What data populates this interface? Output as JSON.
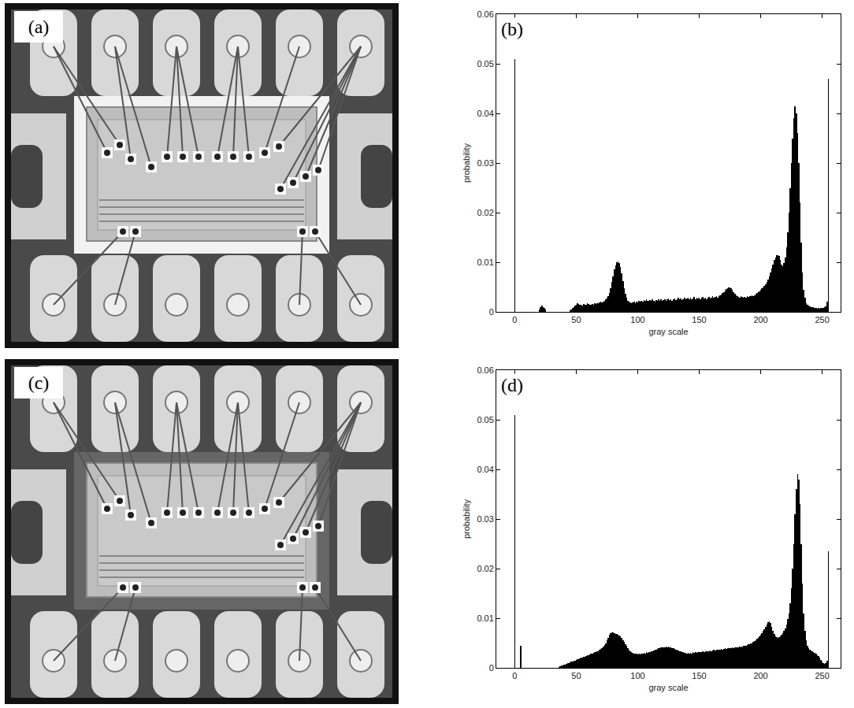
{
  "images": [
    {
      "label": "(a)"
    },
    {
      "label": "(c)"
    }
  ],
  "chart_data": [
    {
      "type": "bar",
      "label": "(b)",
      "x_label": "gray scale",
      "y_label": "probability",
      "color": "#000000",
      "grid": false,
      "xlim": [
        -15,
        265
      ],
      "xticks": [
        0,
        50,
        100,
        150,
        200,
        250
      ],
      "ylim": [
        0,
        0.06
      ],
      "yticks": [
        0,
        0.01,
        0.02,
        0.03,
        0.04,
        0.05,
        0.06
      ],
      "x": [
        0,
        1,
        2,
        3,
        4,
        5,
        6,
        7,
        8,
        9,
        10,
        11,
        12,
        13,
        14,
        15,
        16,
        17,
        18,
        19,
        20,
        21,
        22,
        23,
        24,
        25,
        26,
        27,
        28,
        29,
        30,
        31,
        32,
        33,
        34,
        35,
        36,
        37,
        38,
        39,
        40,
        41,
        42,
        43,
        44,
        45,
        46,
        47,
        48,
        49,
        50,
        51,
        52,
        53,
        54,
        55,
        56,
        57,
        58,
        59,
        60,
        61,
        62,
        63,
        64,
        65,
        66,
        67,
        68,
        69,
        70,
        71,
        72,
        73,
        74,
        75,
        76,
        77,
        78,
        79,
        80,
        81,
        82,
        83,
        84,
        85,
        86,
        87,
        88,
        89,
        90,
        91,
        92,
        93,
        94,
        95,
        96,
        97,
        98,
        99,
        100,
        101,
        102,
        103,
        104,
        105,
        106,
        107,
        108,
        109,
        110,
        111,
        112,
        113,
        114,
        115,
        116,
        117,
        118,
        119,
        120,
        121,
        122,
        123,
        124,
        125,
        126,
        127,
        128,
        129,
        130,
        131,
        132,
        133,
        134,
        135,
        136,
        137,
        138,
        139,
        140,
        141,
        142,
        143,
        144,
        145,
        146,
        147,
        148,
        149,
        150,
        151,
        152,
        153,
        154,
        155,
        156,
        157,
        158,
        159,
        160,
        161,
        162,
        163,
        164,
        165,
        166,
        167,
        168,
        169,
        170,
        171,
        172,
        173,
        174,
        175,
        176,
        177,
        178,
        179,
        180,
        181,
        182,
        183,
        184,
        185,
        186,
        187,
        188,
        189,
        190,
        191,
        192,
        193,
        194,
        195,
        196,
        197,
        198,
        199,
        200,
        201,
        202,
        203,
        204,
        205,
        206,
        207,
        208,
        209,
        210,
        211,
        212,
        213,
        214,
        215,
        216,
        217,
        218,
        219,
        220,
        221,
        222,
        223,
        224,
        225,
        226,
        227,
        228,
        229,
        230,
        231,
        232,
        233,
        234,
        235,
        236,
        237,
        238,
        239,
        240,
        241,
        242,
        243,
        244,
        245,
        246,
        247,
        248,
        249,
        250,
        251,
        252,
        253,
        254,
        255
      ],
      "values": [
        0.051,
        0,
        0,
        0,
        0,
        0,
        0,
        0,
        0,
        0,
        0,
        0,
        0,
        0,
        0,
        0,
        0,
        0,
        0,
        0,
        0.0005,
        0.001,
        0.0012,
        0.001,
        0.0008,
        0.0004,
        0,
        0,
        0,
        0,
        0,
        0,
        0,
        0,
        0,
        0,
        0,
        0,
        0,
        0,
        0,
        0,
        0,
        0,
        0,
        0.0003,
        0.0005,
        0.0008,
        0.001,
        0.0012,
        0.0015,
        0.0018,
        0.0016,
        0.0014,
        0.0015,
        0.0013,
        0.0016,
        0.0014,
        0.0015,
        0.0017,
        0.0016,
        0.0015,
        0.0014,
        0.0016,
        0.0015,
        0.0017,
        0.0016,
        0.0018,
        0.0017,
        0.0019,
        0.002,
        0.0019,
        0.0021,
        0.0023,
        0.0025,
        0.0028,
        0.0032,
        0.0038,
        0.0048,
        0.006,
        0.0072,
        0.0085,
        0.0094,
        0.01,
        0.0102,
        0.0098,
        0.009,
        0.0078,
        0.0062,
        0.0048,
        0.0036,
        0.0028,
        0.0023,
        0.002,
        0.0019,
        0.0018,
        0.0019,
        0.002,
        0.0018,
        0.0021,
        0.0019,
        0.0022,
        0.002,
        0.0023,
        0.0021,
        0.0024,
        0.0022,
        0.0025,
        0.0023,
        0.0022,
        0.0024,
        0.0022,
        0.0025,
        0.0023,
        0.0021,
        0.0024,
        0.0022,
        0.0026,
        0.0023,
        0.0025,
        0.0022,
        0.0024,
        0.0026,
        0.0023,
        0.0025,
        0.0027,
        0.0024,
        0.0026,
        0.0023,
        0.0025,
        0.0027,
        0.0024,
        0.0026,
        0.0028,
        0.0025,
        0.0027,
        0.0024,
        0.0026,
        0.0028,
        0.0025,
        0.0027,
        0.0029,
        0.0026,
        0.0028,
        0.0025,
        0.0027,
        0.003,
        0.0026,
        0.0028,
        0.0027,
        0.0029,
        0.0026,
        0.0028,
        0.003,
        0.0027,
        0.0029,
        0.0026,
        0.0028,
        0.003,
        0.0027,
        0.0029,
        0.0031,
        0.0028,
        0.003,
        0.0032,
        0.0029,
        0.0031,
        0.0033,
        0.0035,
        0.0038,
        0.004,
        0.0043,
        0.0046,
        0.0048,
        0.005,
        0.0049,
        0.0047,
        0.0044,
        0.004,
        0.0036,
        0.0033,
        0.0031,
        0.003,
        0.0029,
        0.0031,
        0.003,
        0.0028,
        0.003,
        0.0029,
        0.0031,
        0.003,
        0.0032,
        0.0031,
        0.0033,
        0.0032,
        0.0034,
        0.0036,
        0.0038,
        0.004,
        0.0042,
        0.0045,
        0.0048,
        0.005,
        0.0053,
        0.0056,
        0.006,
        0.0065,
        0.0072,
        0.008,
        0.0088,
        0.0096,
        0.0104,
        0.011,
        0.0114,
        0.0115,
        0.0112,
        0.0104,
        0.0095,
        0.0092,
        0.0098,
        0.011,
        0.013,
        0.016,
        0.02,
        0.025,
        0.03,
        0.035,
        0.039,
        0.0415,
        0.04,
        0.036,
        0.03,
        0.022,
        0.014,
        0.008,
        0.0045,
        0.0028,
        0.0018,
        0.0014,
        0.0012,
        0.0011,
        0.001,
        0.0009,
        0.0009,
        0.0008,
        0.0008,
        0.0007,
        0.0008,
        0.0007,
        0.0008,
        0.0007,
        0.0008,
        0.0009,
        0.0011,
        0.002,
        0.047
      ]
    },
    {
      "type": "bar",
      "label": "(d)",
      "x_label": "gray scale",
      "y_label": "probability",
      "color": "#000000",
      "grid": false,
      "xlim": [
        -15,
        265
      ],
      "xticks": [
        0,
        50,
        100,
        150,
        200,
        250
      ],
      "ylim": [
        0,
        0.06
      ],
      "yticks": [
        0,
        0.01,
        0.02,
        0.03,
        0.04,
        0.05,
        0.06
      ],
      "x": [
        0,
        1,
        2,
        3,
        4,
        5,
        6,
        7,
        8,
        9,
        10,
        11,
        12,
        13,
        14,
        15,
        16,
        17,
        18,
        19,
        20,
        21,
        22,
        23,
        24,
        25,
        26,
        27,
        28,
        29,
        30,
        31,
        32,
        33,
        34,
        35,
        36,
        37,
        38,
        39,
        40,
        41,
        42,
        43,
        44,
        45,
        46,
        47,
        48,
        49,
        50,
        51,
        52,
        53,
        54,
        55,
        56,
        57,
        58,
        59,
        60,
        61,
        62,
        63,
        64,
        65,
        66,
        67,
        68,
        69,
        70,
        71,
        72,
        73,
        74,
        75,
        76,
        77,
        78,
        79,
        80,
        81,
        82,
        83,
        84,
        85,
        86,
        87,
        88,
        89,
        90,
        91,
        92,
        93,
        94,
        95,
        96,
        97,
        98,
        99,
        100,
        101,
        102,
        103,
        104,
        105,
        106,
        107,
        108,
        109,
        110,
        111,
        112,
        113,
        114,
        115,
        116,
        117,
        118,
        119,
        120,
        121,
        122,
        123,
        124,
        125,
        126,
        127,
        128,
        129,
        130,
        131,
        132,
        133,
        134,
        135,
        136,
        137,
        138,
        139,
        140,
        141,
        142,
        143,
        144,
        145,
        146,
        147,
        148,
        149,
        150,
        151,
        152,
        153,
        154,
        155,
        156,
        157,
        158,
        159,
        160,
        161,
        162,
        163,
        164,
        165,
        166,
        167,
        168,
        169,
        170,
        171,
        172,
        173,
        174,
        175,
        176,
        177,
        178,
        179,
        180,
        181,
        182,
        183,
        184,
        185,
        186,
        187,
        188,
        189,
        190,
        191,
        192,
        193,
        194,
        195,
        196,
        197,
        198,
        199,
        200,
        201,
        202,
        203,
        204,
        205,
        206,
        207,
        208,
        209,
        210,
        211,
        212,
        213,
        214,
        215,
        216,
        217,
        218,
        219,
        220,
        221,
        222,
        223,
        224,
        225,
        226,
        227,
        228,
        229,
        230,
        231,
        232,
        233,
        234,
        235,
        236,
        237,
        238,
        239,
        240,
        241,
        242,
        243,
        244,
        245,
        246,
        247,
        248,
        249,
        250,
        251,
        252,
        253,
        254,
        255
      ],
      "values": [
        0.051,
        0,
        0,
        0,
        0,
        0.0045,
        0,
        0,
        0,
        0,
        0,
        0,
        0,
        0,
        0,
        0,
        0,
        0,
        0,
        0,
        0,
        0,
        0,
        0,
        0,
        0,
        0,
        0,
        0,
        0,
        0,
        0,
        0,
        0,
        0,
        0,
        0.0002,
        0.0003,
        0.0004,
        0.0005,
        0.0006,
        0.0007,
        0.0008,
        0.0009,
        0.001,
        0.0011,
        0.0012,
        0.0013,
        0.0014,
        0.0015,
        0.0016,
        0.0017,
        0.0018,
        0.0019,
        0.002,
        0.0021,
        0.0022,
        0.0023,
        0.0024,
        0.0025,
        0.0026,
        0.0027,
        0.0028,
        0.0029,
        0.003,
        0.0031,
        0.0032,
        0.0033,
        0.0034,
        0.0036,
        0.0038,
        0.004,
        0.0043,
        0.0046,
        0.005,
        0.0055,
        0.006,
        0.0066,
        0.007,
        0.0072,
        0.0071,
        0.007,
        0.0068,
        0.0069,
        0.0067,
        0.0065,
        0.0063,
        0.006,
        0.0056,
        0.0052,
        0.0048,
        0.0044,
        0.004,
        0.0037,
        0.0034,
        0.0032,
        0.003,
        0.0029,
        0.0028,
        0.0028,
        0.0027,
        0.0028,
        0.0027,
        0.0029,
        0.0028,
        0.003,
        0.0029,
        0.0031,
        0.003,
        0.0032,
        0.0031,
        0.0033,
        0.0034,
        0.0035,
        0.0036,
        0.0037,
        0.0038,
        0.0039,
        0.004,
        0.0041,
        0.0041,
        0.0042,
        0.0041,
        0.0043,
        0.0042,
        0.0043,
        0.0042,
        0.0041,
        0.004,
        0.0039,
        0.0038,
        0.0037,
        0.0036,
        0.0035,
        0.0034,
        0.0033,
        0.0032,
        0.0031,
        0.003,
        0.003,
        0.0029,
        0.003,
        0.0029,
        0.003,
        0.0029,
        0.0031,
        0.003,
        0.0031,
        0.003,
        0.0032,
        0.0031,
        0.0032,
        0.0031,
        0.0033,
        0.0032,
        0.0033,
        0.0034,
        0.0033,
        0.0034,
        0.0035,
        0.0034,
        0.0035,
        0.0036,
        0.0035,
        0.0036,
        0.0037,
        0.0036,
        0.0037,
        0.0038,
        0.0037,
        0.0038,
        0.0039,
        0.0038,
        0.0039,
        0.004,
        0.0039,
        0.004,
        0.0041,
        0.004,
        0.0041,
        0.0042,
        0.0041,
        0.0042,
        0.0043,
        0.0042,
        0.0043,
        0.0044,
        0.0045,
        0.0044,
        0.0046,
        0.0047,
        0.0048,
        0.0049,
        0.005,
        0.0052,
        0.0054,
        0.0056,
        0.0058,
        0.006,
        0.0063,
        0.0066,
        0.007,
        0.0074,
        0.0078,
        0.0083,
        0.0088,
        0.0092,
        0.0094,
        0.009,
        0.0082,
        0.0074,
        0.0068,
        0.0064,
        0.0062,
        0.0061,
        0.0062,
        0.0064,
        0.0066,
        0.007,
        0.0075,
        0.008,
        0.0088,
        0.0098,
        0.011,
        0.013,
        0.016,
        0.02,
        0.025,
        0.031,
        0.036,
        0.039,
        0.038,
        0.033,
        0.025,
        0.017,
        0.011,
        0.0075,
        0.0055,
        0.0045,
        0.004,
        0.0037,
        0.0035,
        0.0033,
        0.0031,
        0.003,
        0.0028,
        0.0026,
        0.0024,
        0.002,
        0.0016,
        0.0012,
        0.0009,
        0.0008,
        0.001,
        0.0015,
        0.0235
      ]
    }
  ]
}
